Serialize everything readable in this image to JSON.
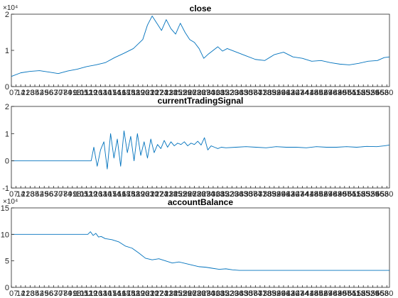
{
  "chart_data": [
    {
      "type": "line",
      "title": "close",
      "xlabel": "",
      "ylabel": "",
      "exponent_label": "×10⁴",
      "xlim": [
        0,
        564
      ],
      "ylim": [
        0,
        2
      ],
      "yticks": [
        0,
        1,
        2
      ],
      "ytick_labels": [
        "0",
        "1",
        "2"
      ],
      "xtick_step": 7,
      "grid": "x",
      "series_color": "#0072bd",
      "x": [
        0,
        14,
        28,
        42,
        56,
        70,
        84,
        98,
        112,
        126,
        140,
        154,
        168,
        182,
        196,
        203,
        210,
        217,
        224,
        231,
        238,
        245,
        252,
        259,
        266,
        273,
        280,
        287,
        294,
        301,
        308,
        315,
        322,
        336,
        350,
        364,
        378,
        392,
        406,
        420,
        434,
        448,
        462,
        476,
        490,
        504,
        518,
        532,
        546,
        556,
        564
      ],
      "values": [
        0.28,
        0.38,
        0.42,
        0.44,
        0.4,
        0.36,
        0.43,
        0.48,
        0.55,
        0.6,
        0.66,
        0.8,
        0.92,
        1.05,
        1.3,
        1.7,
        1.95,
        1.75,
        1.55,
        1.85,
        1.6,
        1.45,
        1.75,
        1.5,
        1.3,
        1.22,
        1.05,
        0.78,
        0.9,
        1.0,
        1.1,
        0.98,
        1.05,
        0.95,
        0.85,
        0.75,
        0.72,
        0.88,
        0.95,
        0.82,
        0.78,
        0.7,
        0.72,
        0.66,
        0.62,
        0.6,
        0.64,
        0.7,
        0.72,
        0.8,
        0.82
      ]
    },
    {
      "type": "line",
      "title": "currentTradingSignal",
      "xlabel": "",
      "ylabel": "",
      "xlim": [
        0,
        564
      ],
      "ylim": [
        -1,
        2
      ],
      "yticks": [
        -1,
        0,
        1,
        2
      ],
      "ytick_labels": [
        "-1",
        "0",
        "1",
        "2"
      ],
      "xtick_step": 7,
      "grid": "x",
      "series_color": "#0072bd",
      "x": [
        0,
        50,
        100,
        115,
        119,
        123,
        128,
        133,
        138,
        143,
        148,
        153,
        158,
        163,
        168,
        173,
        178,
        183,
        188,
        193,
        198,
        203,
        208,
        213,
        218,
        223,
        228,
        233,
        238,
        243,
        248,
        253,
        258,
        263,
        268,
        273,
        278,
        283,
        288,
        293,
        298,
        303,
        308,
        313,
        320,
        335,
        350,
        365,
        380,
        395,
        410,
        425,
        440,
        455,
        470,
        485,
        500,
        515,
        530,
        545,
        556,
        564
      ],
      "values": [
        0,
        0,
        0,
        0,
        0,
        0.5,
        -0.2,
        0.4,
        0.7,
        -0.3,
        1.0,
        0.1,
        0.8,
        -0.2,
        1.1,
        0.3,
        0.9,
        0.0,
        1.0,
        0.2,
        0.7,
        0.1,
        0.8,
        0.3,
        0.6,
        0.45,
        0.75,
        0.5,
        0.7,
        0.55,
        0.65,
        0.6,
        0.7,
        0.55,
        0.65,
        0.6,
        0.72,
        0.58,
        0.85,
        0.4,
        0.55,
        0.5,
        0.45,
        0.5,
        0.48,
        0.5,
        0.52,
        0.5,
        0.48,
        0.52,
        0.5,
        0.5,
        0.48,
        0.52,
        0.5,
        0.5,
        0.52,
        0.5,
        0.53,
        0.52,
        0.55,
        0.58
      ]
    },
    {
      "type": "line",
      "title": "accountBalance",
      "xlabel": "",
      "ylabel": "",
      "exponent_label": "×10⁴",
      "xlim": [
        0,
        564
      ],
      "ylim": [
        0,
        15
      ],
      "yticks": [
        0,
        5,
        10,
        15
      ],
      "ytick_labels": [
        "0",
        "5",
        "10",
        "15"
      ],
      "xtick_step": 7,
      "grid": "x",
      "series_color": "#0072bd",
      "x": [
        0,
        30,
        60,
        90,
        114,
        118,
        122,
        126,
        130,
        134,
        140,
        150,
        160,
        170,
        180,
        190,
        200,
        210,
        220,
        230,
        240,
        250,
        260,
        270,
        280,
        290,
        300,
        310,
        320,
        330,
        340,
        400,
        460,
        520,
        564
      ],
      "values": [
        10,
        10,
        10,
        10,
        10,
        10.5,
        9.8,
        10.2,
        9.5,
        9.6,
        9.2,
        9.0,
        8.6,
        7.8,
        7.4,
        6.5,
        5.5,
        5.2,
        5.4,
        5.0,
        4.6,
        4.8,
        4.5,
        4.2,
        3.9,
        3.8,
        3.6,
        3.4,
        3.5,
        3.3,
        3.2,
        3.2,
        3.2,
        3.2,
        3.2
      ]
    }
  ]
}
